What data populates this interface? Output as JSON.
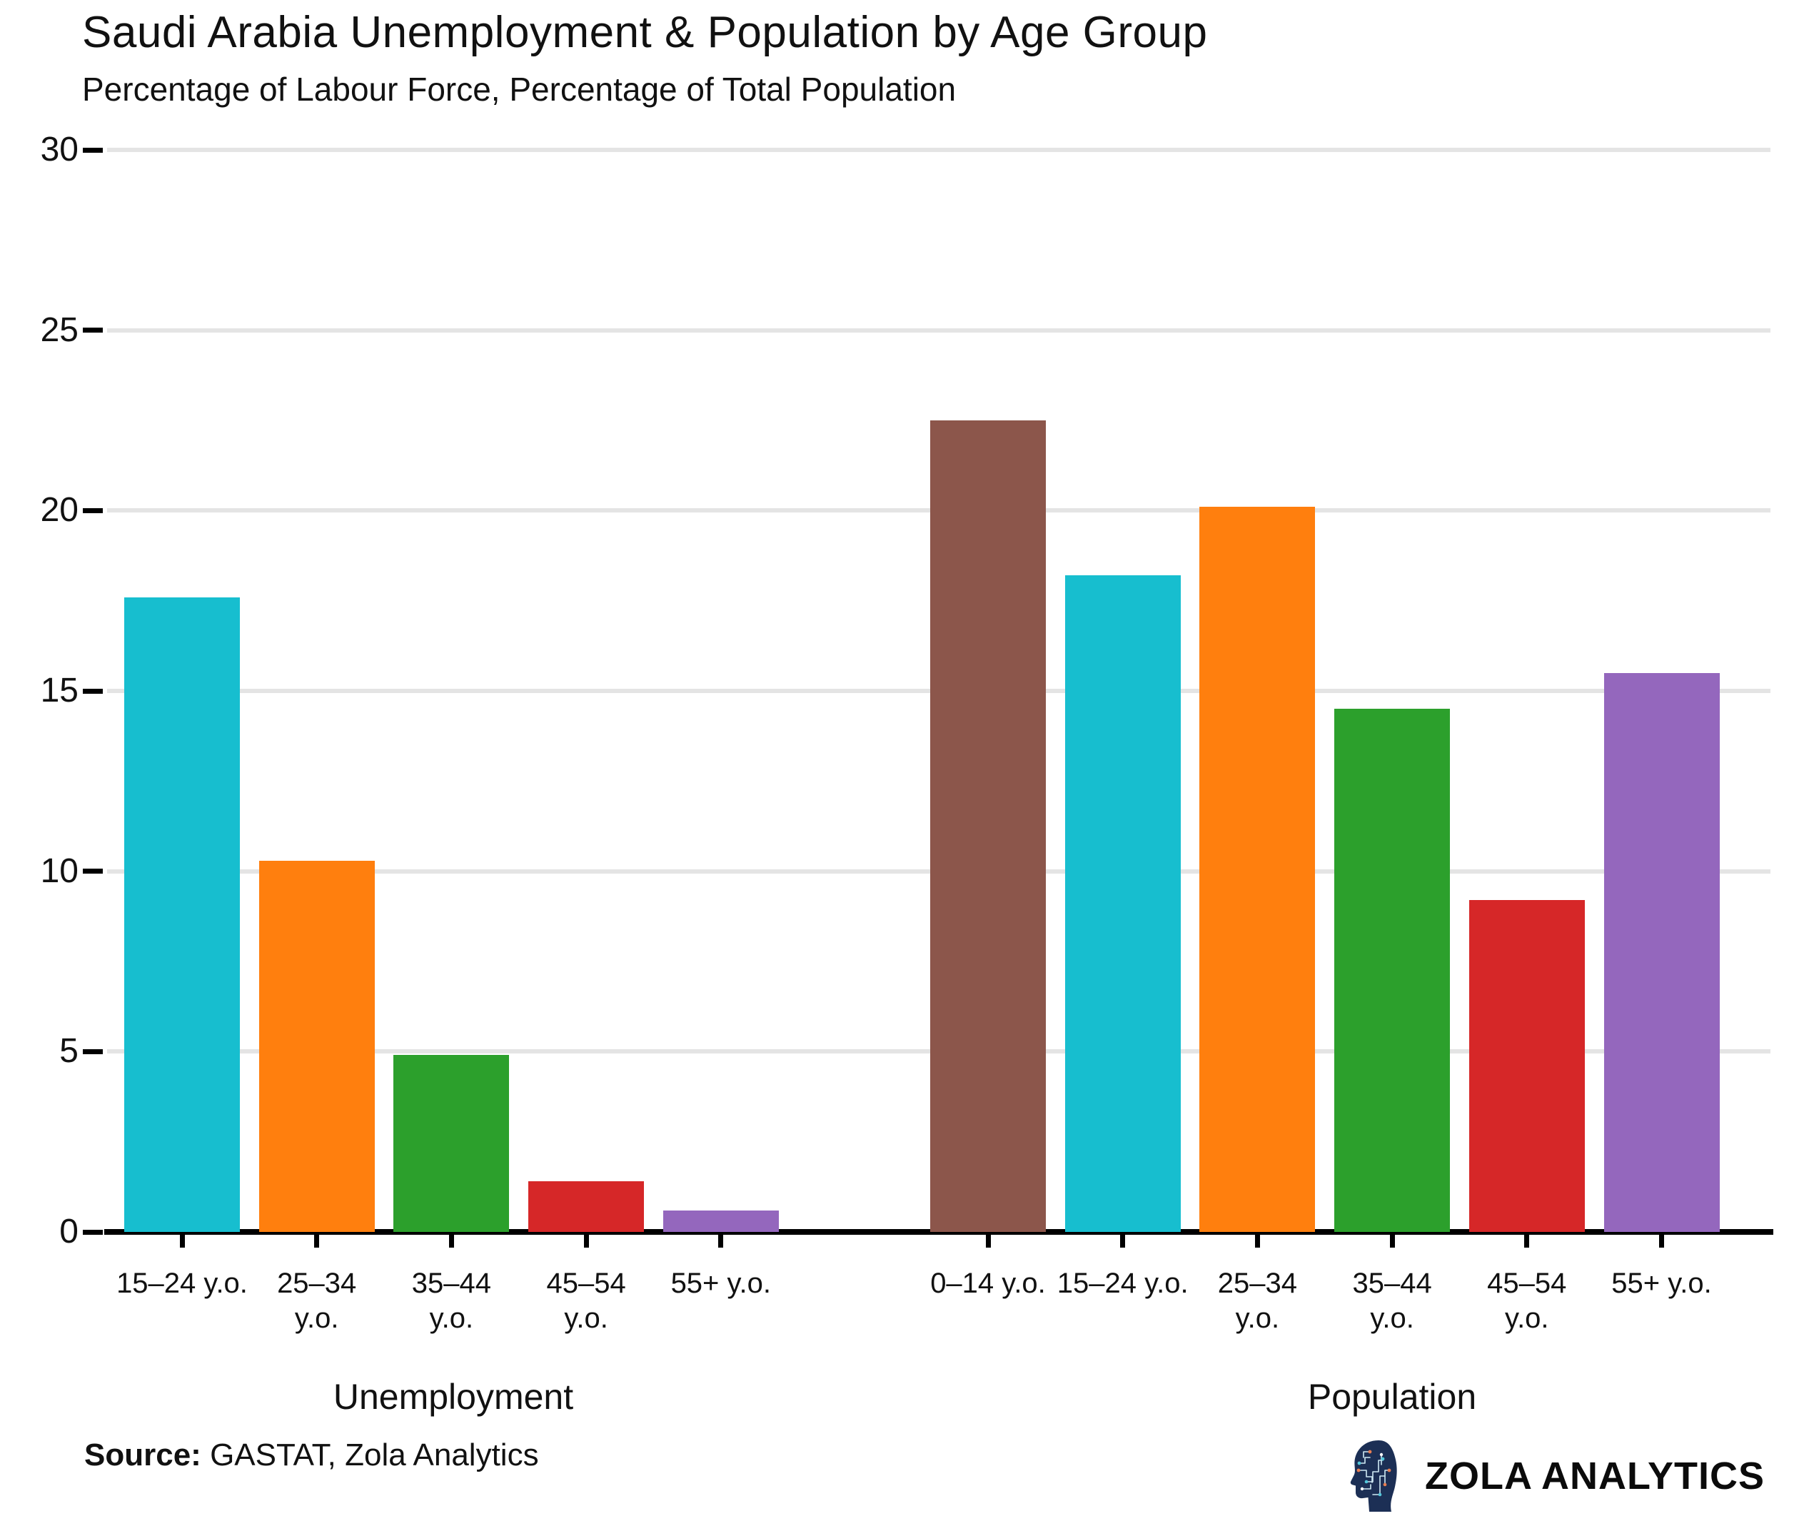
{
  "header": {
    "title": "Saudi Arabia Unemployment & Population by Age Group",
    "subtitle": "Percentage of Labour Force, Percentage of Total Population"
  },
  "footer": {
    "source_label": "Source:",
    "source_text": "GASTAT, Zola Analytics",
    "brand": "ZOLA ANALYTICS"
  },
  "colors": {
    "grid": "#e4e4e4",
    "axis": "#000000",
    "text": "#111111",
    "logo_navy": "#1c2f55",
    "logo_teal": "#53c7db",
    "logo_orange": "#e87d52"
  },
  "chart_data": {
    "type": "bar",
    "title": "Saudi Arabia Unemployment & Population by Age Group",
    "subtitle": "Percentage of Labour Force, Percentage of Total Population",
    "xlabel": "",
    "ylabel": "",
    "ylim": [
      0,
      30
    ],
    "yticks": [
      0,
      5,
      10,
      15,
      20,
      25,
      30
    ],
    "grid": "horizontal",
    "legend": "none",
    "groups": [
      {
        "name": "Unemployment",
        "bars": [
          {
            "label_lines": [
              "15–24 y.o."
            ],
            "value": 17.6,
            "color": "#17becf"
          },
          {
            "label_lines": [
              "25–34",
              "y.o."
            ],
            "value": 10.3,
            "color": "#ff7f0e"
          },
          {
            "label_lines": [
              "35–44",
              "y.o."
            ],
            "value": 4.9,
            "color": "#2ca02c"
          },
          {
            "label_lines": [
              "45–54",
              "y.o."
            ],
            "value": 1.4,
            "color": "#d62728"
          },
          {
            "label_lines": [
              "55+ y.o."
            ],
            "value": 0.6,
            "color": "#9467bd"
          }
        ]
      },
      {
        "name": "Population",
        "bars": [
          {
            "label_lines": [
              "0–14 y.o."
            ],
            "value": 22.5,
            "color": "#8c564b"
          },
          {
            "label_lines": [
              "15–24 y.o."
            ],
            "value": 18.2,
            "color": "#17becf"
          },
          {
            "label_lines": [
              "25–34",
              "y.o."
            ],
            "value": 20.1,
            "color": "#ff7f0e"
          },
          {
            "label_lines": [
              "35–44",
              "y.o."
            ],
            "value": 14.5,
            "color": "#2ca02c"
          },
          {
            "label_lines": [
              "45–54",
              "y.o."
            ],
            "value": 9.2,
            "color": "#d62728"
          },
          {
            "label_lines": [
              "55+ y.o."
            ],
            "value": 15.5,
            "color": "#9467bd"
          }
        ]
      }
    ]
  }
}
